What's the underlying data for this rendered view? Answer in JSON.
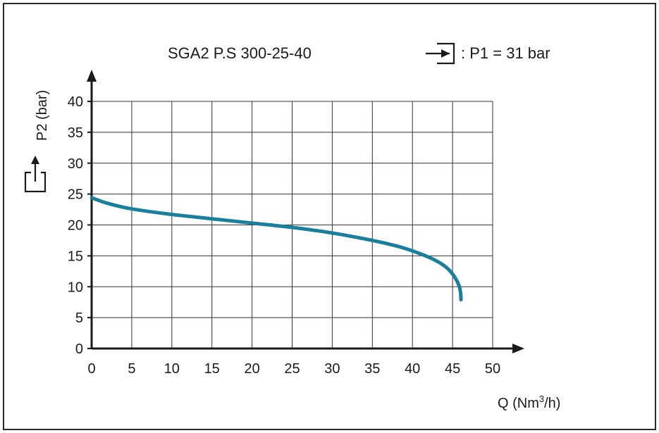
{
  "chart_data": {
    "type": "line",
    "title": "SGA2 P.S 300-25-40",
    "inlet_label": ": P1 = 31 bar",
    "xlabel": "Q (Nm",
    "xlabel_sup": "3",
    "xlabel_end": "/h)",
    "ylabel": "P2 (bar)",
    "xlim": [
      0,
      50
    ],
    "ylim": [
      0,
      40
    ],
    "xticks": [
      "0",
      "5",
      "10",
      "15",
      "20",
      "25",
      "30",
      "35",
      "40",
      "45",
      "50"
    ],
    "yticks": [
      "0",
      "5",
      "10",
      "15",
      "20",
      "25",
      "30",
      "35",
      "40"
    ],
    "grid": true,
    "series": [
      {
        "color": "#1a7f9c",
        "points": [
          [
            0,
            24.4
          ],
          [
            2,
            23.5
          ],
          [
            5,
            22.6
          ],
          [
            10,
            21.7
          ],
          [
            15,
            21.0
          ],
          [
            20,
            20.3
          ],
          [
            25,
            19.6
          ],
          [
            30,
            18.7
          ],
          [
            35,
            17.5
          ],
          [
            38,
            16.6
          ],
          [
            40,
            15.8
          ],
          [
            42,
            14.8
          ],
          [
            43.5,
            13.8
          ],
          [
            44.5,
            12.8
          ],
          [
            45.3,
            11.5
          ],
          [
            45.8,
            10.2
          ],
          [
            46.0,
            9.0
          ],
          [
            46.05,
            7.9
          ]
        ]
      }
    ]
  },
  "icons": {
    "inlet": "inlet-arrow-icon",
    "outlet": "outlet-arrow-icon"
  }
}
